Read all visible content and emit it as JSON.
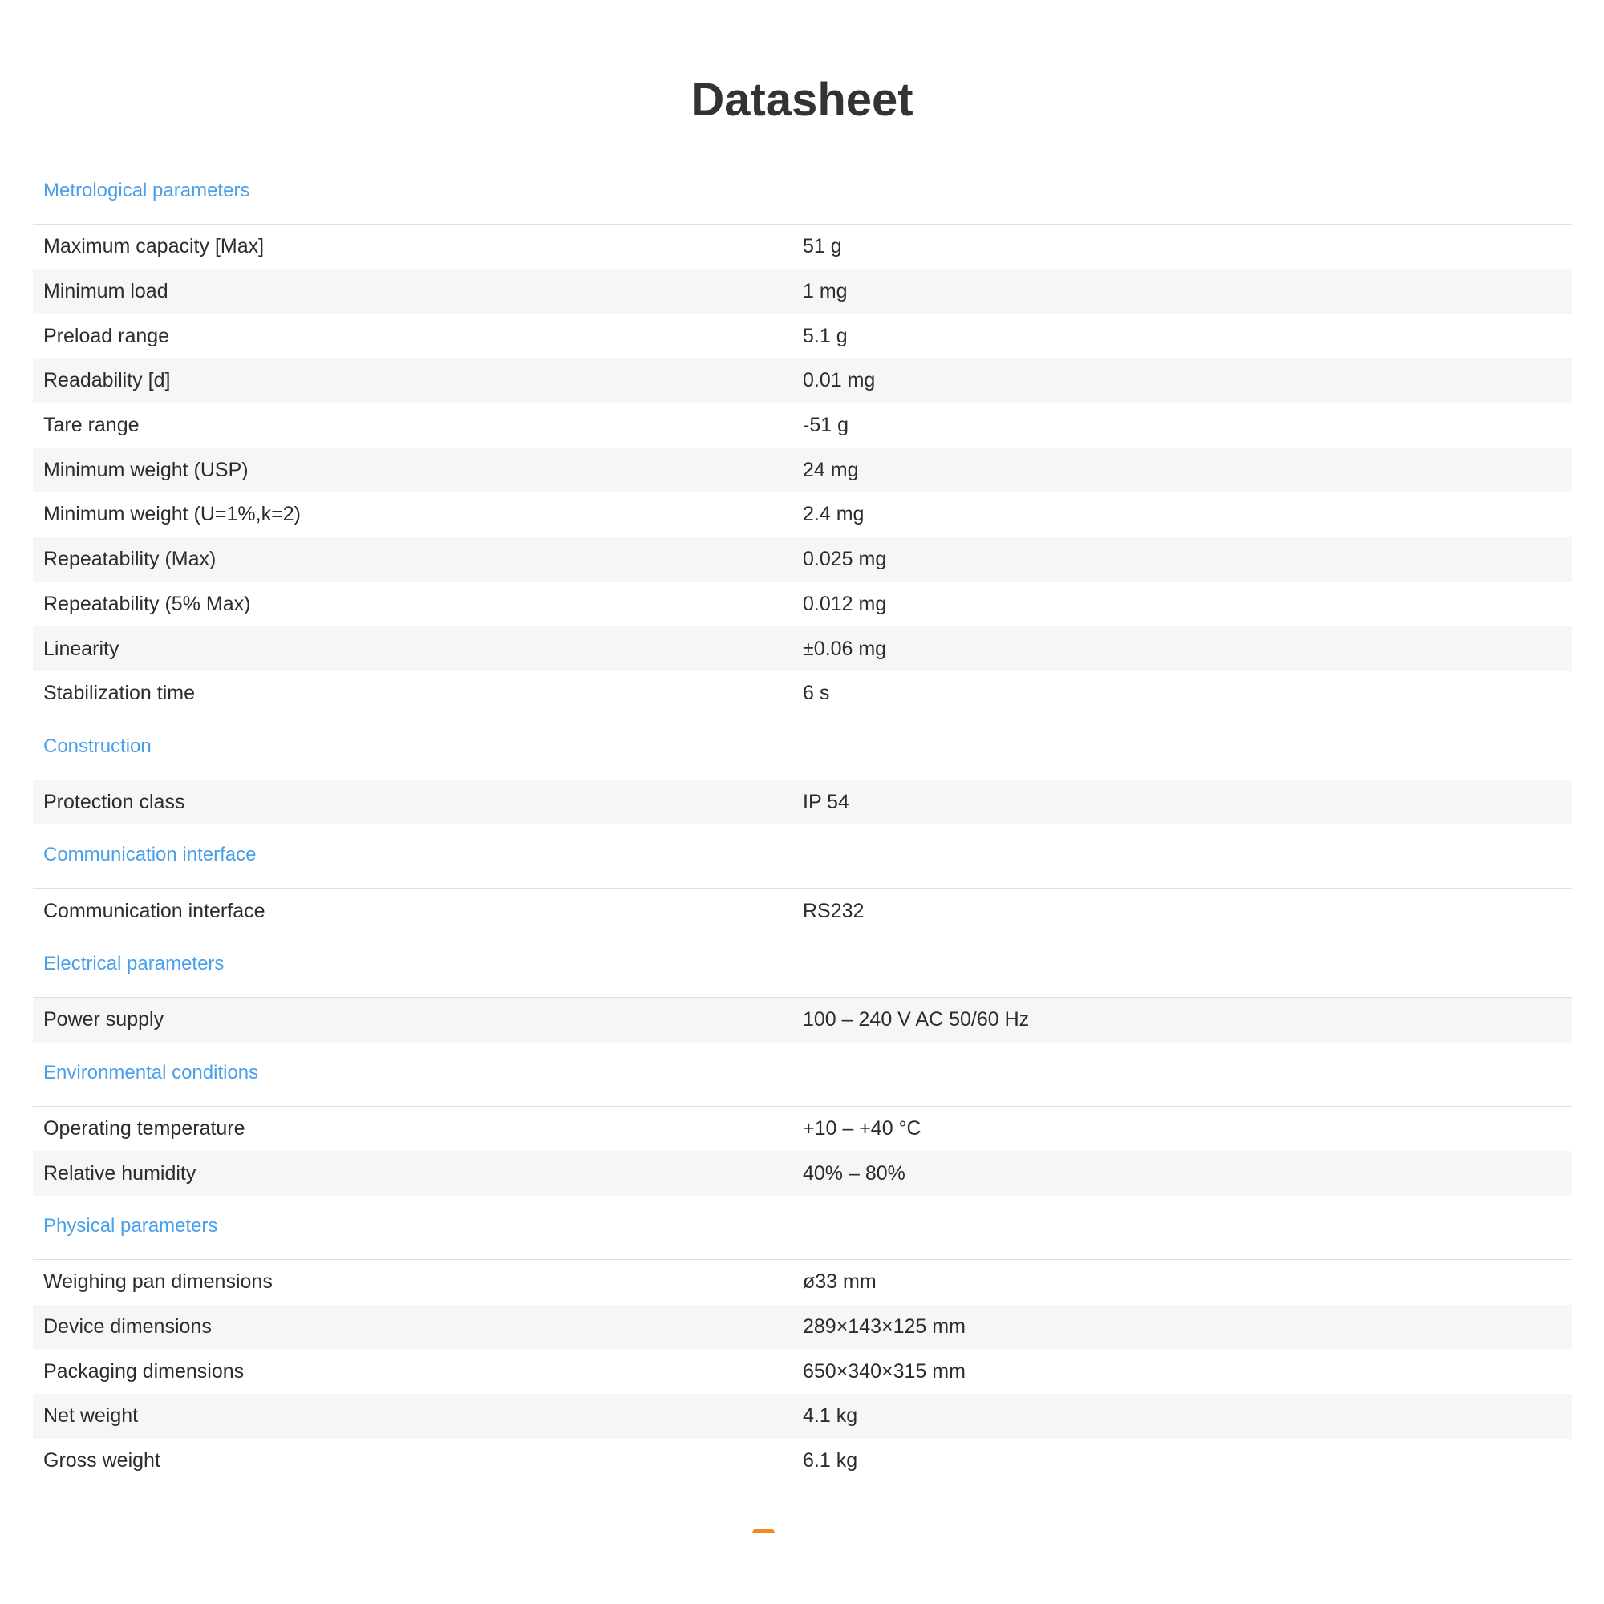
{
  "title": "Datasheet",
  "sections": [
    {
      "heading": "Metrological parameters",
      "rows": [
        {
          "label": "Maximum capacity [Max]",
          "value": "51 g"
        },
        {
          "label": "Minimum load",
          "value": "1 mg"
        },
        {
          "label": "Preload range",
          "value": "5.1 g"
        },
        {
          "label": "Readability [d]",
          "value": "0.01 mg"
        },
        {
          "label": "Tare range",
          "value": "-51 g"
        },
        {
          "label": "Minimum weight (USP)",
          "value": "24 mg"
        },
        {
          "label": "Minimum weight (U=1%,k=2)",
          "value": "2.4 mg"
        },
        {
          "label": "Repeatability (Max)",
          "value": "0.025 mg"
        },
        {
          "label": "Repeatability (5% Max)",
          "value": "0.012 mg"
        },
        {
          "label": "Linearity",
          "value": "±0.06 mg"
        },
        {
          "label": "Stabilization time",
          "value": "6 s"
        }
      ]
    },
    {
      "heading": "Construction",
      "rows": [
        {
          "label": "Protection class",
          "value": "IP 54"
        }
      ]
    },
    {
      "heading": "Communication interface",
      "rows": [
        {
          "label": "Communication interface",
          "value": "RS232"
        }
      ]
    },
    {
      "heading": "Electrical parameters",
      "rows": [
        {
          "label": "Power supply",
          "value": "100 – 240 V AC 50/60 Hz"
        }
      ]
    },
    {
      "heading": "Environmental conditions",
      "rows": [
        {
          "label": "Operating temperature",
          "value": "+10 – +40 °C"
        },
        {
          "label": "Relative humidity",
          "value": "40% – 80%"
        }
      ]
    },
    {
      "heading": "Physical parameters",
      "rows": [
        {
          "label": "Weighing pan dimensions",
          "value": "ø33 mm"
        },
        {
          "label": "Device dimensions",
          "value": "289×143×125 mm"
        },
        {
          "label": "Packaging dimensions",
          "value": "650×340×315 mm"
        },
        {
          "label": "Net weight",
          "value": "4.1 kg"
        },
        {
          "label": "Gross weight",
          "value": "6.1 kg"
        }
      ]
    }
  ],
  "colors": {
    "section_heading": "#4a9fea",
    "stripe": "#f5f6f8",
    "accent": "#f08a1c"
  }
}
